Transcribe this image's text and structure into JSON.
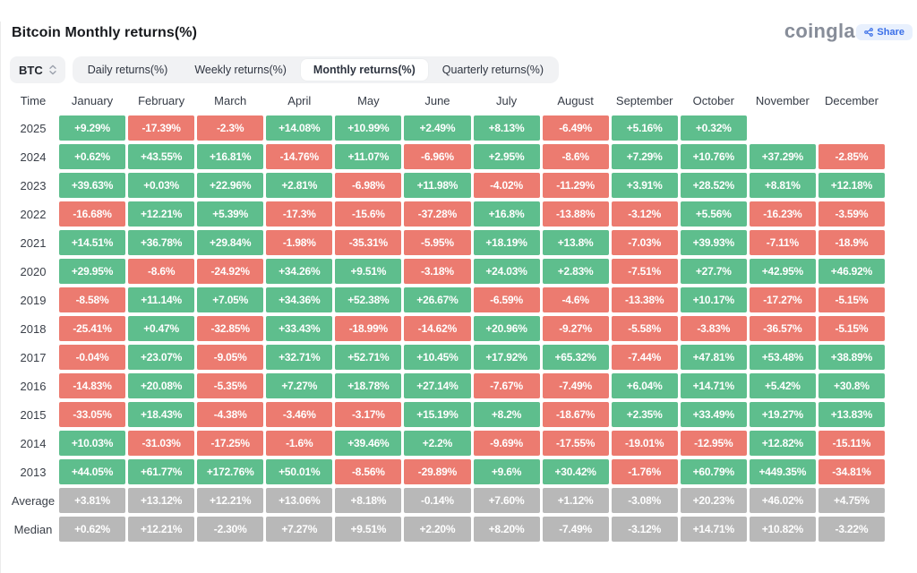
{
  "header": {
    "title": "Bitcoin Monthly returns(%)",
    "logo": "coinglass",
    "share_label": "Share"
  },
  "toolbar": {
    "symbol": "BTC",
    "tabs": [
      {
        "label": "Daily returns(%)",
        "active": false
      },
      {
        "label": "Weekly returns(%)",
        "active": false
      },
      {
        "label": "Monthly returns(%)",
        "active": true
      },
      {
        "label": "Quarterly returns(%)",
        "active": false
      }
    ]
  },
  "chart_data": {
    "type": "table",
    "title": "Bitcoin Monthly returns(%)",
    "columns": [
      "Time",
      "January",
      "February",
      "March",
      "April",
      "May",
      "June",
      "July",
      "August",
      "September",
      "October",
      "November",
      "December"
    ],
    "rows": [
      {
        "label": "2025",
        "type": "year",
        "values": [
          "+9.29%",
          "-17.39%",
          "-2.3%",
          "+14.08%",
          "+10.99%",
          "+2.49%",
          "+8.13%",
          "-6.49%",
          "+5.16%",
          "+0.32%",
          null,
          null
        ]
      },
      {
        "label": "2024",
        "type": "year",
        "values": [
          "+0.62%",
          "+43.55%",
          "+16.81%",
          "-14.76%",
          "+11.07%",
          "-6.96%",
          "+2.95%",
          "-8.6%",
          "+7.29%",
          "+10.76%",
          "+37.29%",
          "-2.85%"
        ]
      },
      {
        "label": "2023",
        "type": "year",
        "values": [
          "+39.63%",
          "+0.03%",
          "+22.96%",
          "+2.81%",
          "-6.98%",
          "+11.98%",
          "-4.02%",
          "-11.29%",
          "+3.91%",
          "+28.52%",
          "+8.81%",
          "+12.18%"
        ]
      },
      {
        "label": "2022",
        "type": "year",
        "values": [
          "-16.68%",
          "+12.21%",
          "+5.39%",
          "-17.3%",
          "-15.6%",
          "-37.28%",
          "+16.8%",
          "-13.88%",
          "-3.12%",
          "+5.56%",
          "-16.23%",
          "-3.59%"
        ]
      },
      {
        "label": "2021",
        "type": "year",
        "values": [
          "+14.51%",
          "+36.78%",
          "+29.84%",
          "-1.98%",
          "-35.31%",
          "-5.95%",
          "+18.19%",
          "+13.8%",
          "-7.03%",
          "+39.93%",
          "-7.11%",
          "-18.9%"
        ]
      },
      {
        "label": "2020",
        "type": "year",
        "values": [
          "+29.95%",
          "-8.6%",
          "-24.92%",
          "+34.26%",
          "+9.51%",
          "-3.18%",
          "+24.03%",
          "+2.83%",
          "-7.51%",
          "+27.7%",
          "+42.95%",
          "+46.92%"
        ]
      },
      {
        "label": "2019",
        "type": "year",
        "values": [
          "-8.58%",
          "+11.14%",
          "+7.05%",
          "+34.36%",
          "+52.38%",
          "+26.67%",
          "-6.59%",
          "-4.6%",
          "-13.38%",
          "+10.17%",
          "-17.27%",
          "-5.15%"
        ]
      },
      {
        "label": "2018",
        "type": "year",
        "values": [
          "-25.41%",
          "+0.47%",
          "-32.85%",
          "+33.43%",
          "-18.99%",
          "-14.62%",
          "+20.96%",
          "-9.27%",
          "-5.58%",
          "-3.83%",
          "-36.57%",
          "-5.15%"
        ]
      },
      {
        "label": "2017",
        "type": "year",
        "values": [
          "-0.04%",
          "+23.07%",
          "-9.05%",
          "+32.71%",
          "+52.71%",
          "+10.45%",
          "+17.92%",
          "+65.32%",
          "-7.44%",
          "+47.81%",
          "+53.48%",
          "+38.89%"
        ]
      },
      {
        "label": "2016",
        "type": "year",
        "values": [
          "-14.83%",
          "+20.08%",
          "-5.35%",
          "+7.27%",
          "+18.78%",
          "+27.14%",
          "-7.67%",
          "-7.49%",
          "+6.04%",
          "+14.71%",
          "+5.42%",
          "+30.8%"
        ]
      },
      {
        "label": "2015",
        "type": "year",
        "values": [
          "-33.05%",
          "+18.43%",
          "-4.38%",
          "-3.46%",
          "-3.17%",
          "+15.19%",
          "+8.2%",
          "-18.67%",
          "+2.35%",
          "+33.49%",
          "+19.27%",
          "+13.83%"
        ]
      },
      {
        "label": "2014",
        "type": "year",
        "values": [
          "+10.03%",
          "-31.03%",
          "-17.25%",
          "-1.6%",
          "+39.46%",
          "+2.2%",
          "-9.69%",
          "-17.55%",
          "-19.01%",
          "-12.95%",
          "+12.82%",
          "-15.11%"
        ]
      },
      {
        "label": "2013",
        "type": "year",
        "values": [
          "+44.05%",
          "+61.77%",
          "+172.76%",
          "+50.01%",
          "-8.56%",
          "-29.89%",
          "+9.6%",
          "+30.42%",
          "-1.76%",
          "+60.79%",
          "+449.35%",
          "-34.81%"
        ]
      },
      {
        "label": "Average",
        "type": "summary",
        "values": [
          "+3.81%",
          "+13.12%",
          "+12.21%",
          "+13.06%",
          "+8.18%",
          "-0.14%",
          "+7.60%",
          "+1.12%",
          "-3.08%",
          "+20.23%",
          "+46.02%",
          "+4.75%"
        ]
      },
      {
        "label": "Median",
        "type": "summary",
        "values": [
          "+0.62%",
          "+12.21%",
          "-2.30%",
          "+7.27%",
          "+9.51%",
          "+2.20%",
          "+8.20%",
          "-7.49%",
          "-3.12%",
          "+14.71%",
          "+10.82%",
          "-3.22%"
        ]
      }
    ]
  },
  "colors": {
    "positive": "#5ebe8d",
    "negative": "#ec7b70",
    "summary": "#b8b8b8",
    "accent": "#3a6fe8"
  }
}
